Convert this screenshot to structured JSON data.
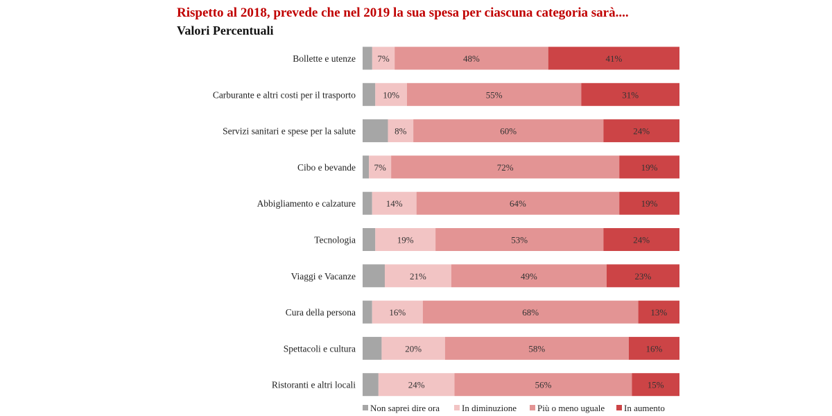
{
  "header": {
    "title": "Rispetto al 2018, prevede che nel 2019 la sua spesa per ciascuna categoria sarà....",
    "subtitle": "Valori Percentuali"
  },
  "chart_data": {
    "type": "bar",
    "orientation": "horizontal",
    "stacked": true,
    "normalized_to": 100,
    "title": "Rispetto al 2018, prevede che nel 2019 la sua spesa per ciascuna categoria sarà....",
    "subtitle": "Valori Percentuali",
    "xlabel": "",
    "ylabel": "",
    "categories": [
      "Bollette e utenze",
      "Carburante e altri costi per il trasporto",
      "Servizi sanitari e spese per la salute",
      "Cibo e bevande",
      "Abbigliamento e calzature",
      "Tecnologia",
      "Viaggi e Vacanze",
      "Cura della persona",
      "Spettacoli e cultura",
      "Ristoranti e altri locali"
    ],
    "series": [
      {
        "name": "Non saprei dire ora",
        "color": "#a6a6a6",
        "values": [
          3,
          4,
          8,
          2,
          3,
          4,
          7,
          3,
          6,
          5
        ],
        "show_labels": false
      },
      {
        "name": "In diminuzione",
        "color": "#f2c4c4",
        "values": [
          7,
          10,
          8,
          7,
          14,
          19,
          21,
          16,
          20,
          24
        ],
        "show_labels": true
      },
      {
        "name": "Più o meno uguale",
        "color": "#e39494",
        "values": [
          48,
          55,
          60,
          72,
          64,
          53,
          49,
          68,
          58,
          56
        ],
        "show_labels": true
      },
      {
        "name": "In aumento",
        "color": "#cc4446",
        "values": [
          41,
          31,
          24,
          19,
          19,
          24,
          23,
          13,
          16,
          15
        ],
        "show_labels": true
      }
    ],
    "value_suffix": "%",
    "legend_position": "bottom",
    "grid": false
  }
}
